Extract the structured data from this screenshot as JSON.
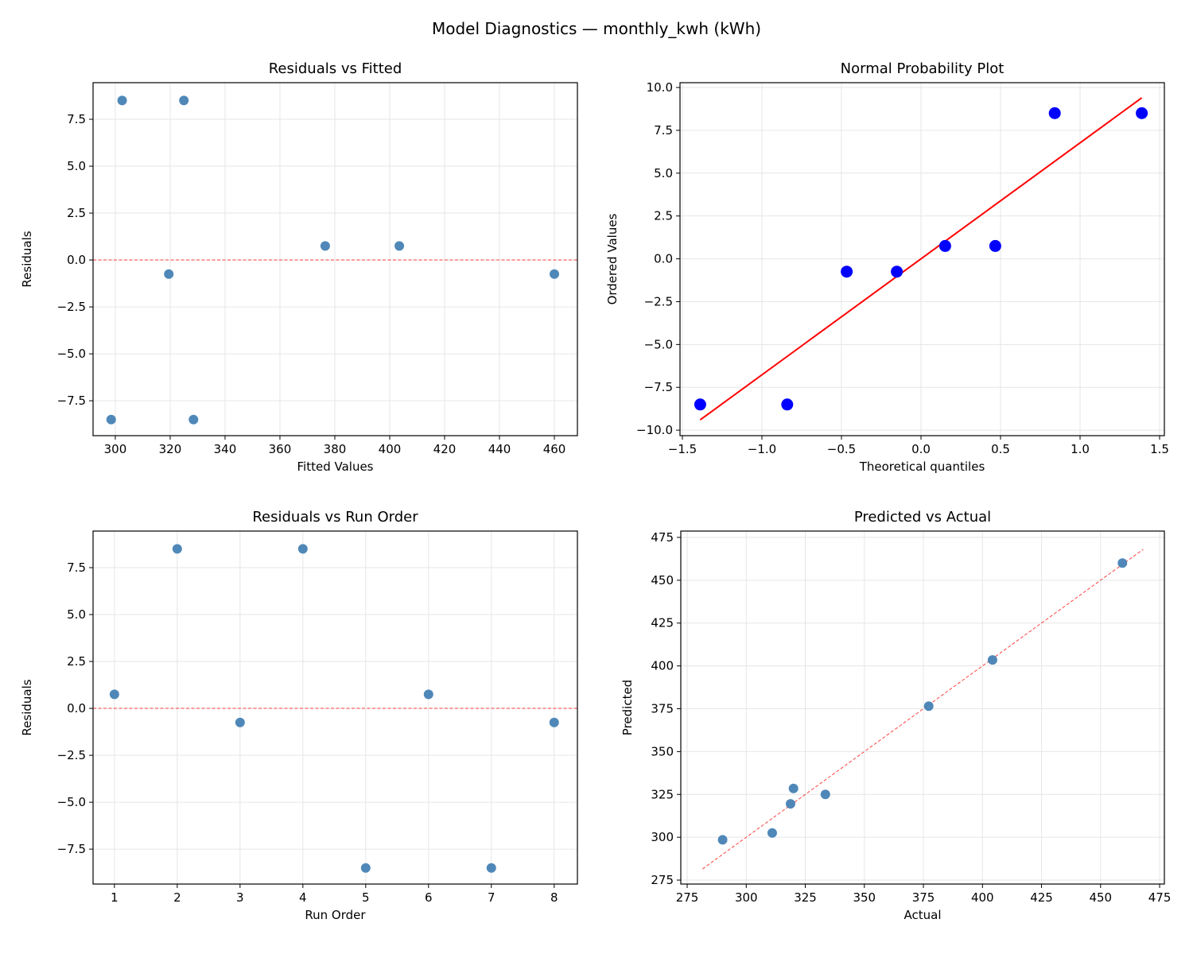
{
  "title": "Model Diagnostics — monthly_kwh (kWh)",
  "chart_data": [
    {
      "type": "scatter",
      "title": "Residuals vs Fitted",
      "xlabel": "Fitted Values",
      "ylabel": "Residuals",
      "xlim": [
        291.9,
        468.4
      ],
      "ylim": [
        -9.36,
        9.45
      ],
      "xticks": [
        300,
        320,
        340,
        360,
        380,
        400,
        420,
        440,
        460
      ],
      "yticks": [
        -7.5,
        -5.0,
        -2.5,
        0.0,
        2.5,
        5.0,
        7.5
      ],
      "grid": true,
      "point_color": "#4682b4",
      "x": [
        298.5,
        302.5,
        319.5,
        325.0,
        328.5,
        376.5,
        403.5,
        460.0
      ],
      "y": [
        -8.5,
        8.5,
        -0.75,
        8.5,
        -8.5,
        0.75,
        0.75,
        -0.75
      ],
      "reference_line": {
        "type": "hline",
        "y": 0,
        "color": "#ff0000",
        "style": "dashed"
      }
    },
    {
      "type": "scatter",
      "title": "Normal Probability Plot",
      "xlabel": "Theoretical quantiles",
      "ylabel": "Ordered Values",
      "xlim": [
        -1.515,
        1.53
      ],
      "ylim": [
        -10.32,
        10.28
      ],
      "xticks": [
        -1.5,
        -1.0,
        -0.5,
        0.0,
        0.5,
        1.0,
        1.5
      ],
      "yticks": [
        -10.0,
        -7.5,
        -5.0,
        -2.5,
        0.0,
        2.5,
        5.0,
        7.5,
        10.0
      ],
      "grid": true,
      "point_color": "#0000ff",
      "x": [
        -1.388,
        -0.841,
        -0.467,
        -0.152,
        0.152,
        0.467,
        0.841,
        1.388
      ],
      "y": [
        -8.5,
        -8.5,
        -0.75,
        -0.75,
        0.75,
        0.75,
        8.5,
        8.5
      ],
      "reference_line": {
        "type": "fit",
        "slope": 6.77,
        "intercept": 0.0,
        "x_range": [
          -1.388,
          1.388
        ],
        "color": "#ff0000",
        "style": "solid"
      }
    },
    {
      "type": "scatter",
      "title": "Residuals vs Run Order",
      "xlabel": "Run Order",
      "ylabel": "Residuals",
      "xlim": [
        0.66,
        8.37
      ],
      "ylim": [
        -9.36,
        9.45
      ],
      "xticks": [
        1,
        2,
        3,
        4,
        5,
        6,
        7,
        8
      ],
      "yticks": [
        -7.5,
        -5.0,
        -2.5,
        0.0,
        2.5,
        5.0,
        7.5
      ],
      "grid": true,
      "point_color": "#4682b4",
      "x": [
        1,
        2,
        3,
        4,
        5,
        6,
        7,
        8
      ],
      "y": [
        0.75,
        8.5,
        -0.75,
        8.5,
        -8.5,
        0.75,
        -8.5,
        -0.75
      ],
      "reference_line": {
        "type": "hline",
        "y": 0,
        "color": "#ff0000",
        "style": "dashed"
      }
    },
    {
      "type": "scatter",
      "title": "Predicted vs Actual",
      "xlabel": "Actual",
      "ylabel": "Predicted",
      "xlim": [
        272.3,
        477.0
      ],
      "ylim": [
        272.7,
        478.7
      ],
      "xticks": [
        275,
        300,
        325,
        350,
        375,
        400,
        425,
        450,
        475
      ],
      "yticks": [
        275,
        300,
        325,
        350,
        375,
        400,
        425,
        450,
        475
      ],
      "grid": true,
      "point_color": "#4682b4",
      "x": [
        290.0,
        311.0,
        318.75,
        320.0,
        333.5,
        377.25,
        404.25,
        459.25
      ],
      "y": [
        298.5,
        302.5,
        319.5,
        328.5,
        325.0,
        376.5,
        403.5,
        460.0
      ],
      "reference_line": {
        "type": "identity",
        "x_range": [
          281.5,
          468.0
        ],
        "color": "#ff0000",
        "style": "dashed"
      }
    }
  ]
}
